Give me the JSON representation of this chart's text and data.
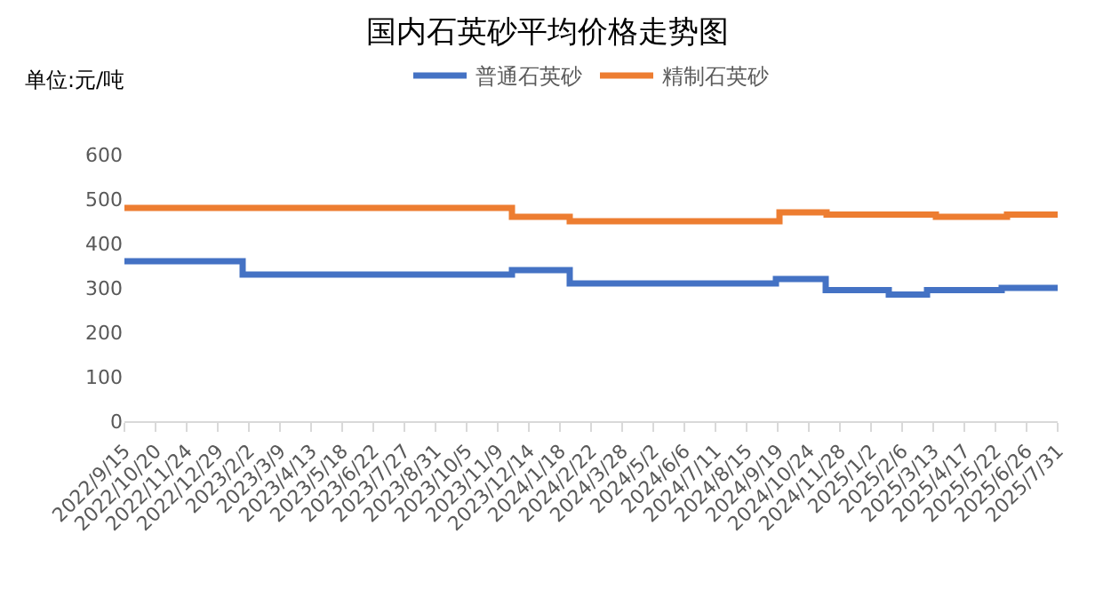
{
  "chart_data": {
    "type": "step",
    "title": "国内石英砂平均价格走势图",
    "annotations": [
      "单位:元/吨"
    ],
    "series": [
      {
        "name": "普通石英砂",
        "color": "#4472c4",
        "x": [
          "2022-09-15",
          "2023-01-26",
          "2023-11-25",
          "2024-01-29",
          "2024-09-17",
          "2024-11-12",
          "2025-01-22",
          "2025-03-06",
          "2025-05-29",
          "2025-07-31"
        ],
        "values": [
          360,
          330,
          340,
          310,
          320,
          295,
          285,
          295,
          300,
          300
        ]
      },
      {
        "name": "精制石英砂",
        "color": "#ed7d31",
        "x": [
          "2022-09-15",
          "2023-11-25",
          "2024-01-29",
          "2024-09-21",
          "2024-11-13",
          "2025-03-16",
          "2025-06-04",
          "2025-07-31"
        ],
        "values": [
          480,
          460,
          450,
          470,
          465,
          460,
          465,
          465
        ]
      }
    ],
    "xlim": [
      "2022-09-15",
      "2025-07-31"
    ],
    "xticks": [
      {
        "value": "2022-09-15",
        "label": "2022/9/15"
      },
      {
        "value": "2022-10-20",
        "label": "2022/10/20"
      },
      {
        "value": "2022-11-24",
        "label": "2022/11/24"
      },
      {
        "value": "2022-12-29",
        "label": "2022/12/29"
      },
      {
        "value": "2023-02-02",
        "label": "2023/2/2"
      },
      {
        "value": "2023-03-09",
        "label": "2023/3/9"
      },
      {
        "value": "2023-04-13",
        "label": "2023/4/13"
      },
      {
        "value": "2023-05-18",
        "label": "2023/5/18"
      },
      {
        "value": "2023-06-22",
        "label": "2023/6/22"
      },
      {
        "value": "2023-07-27",
        "label": "2023/7/27"
      },
      {
        "value": "2023-08-31",
        "label": "2023/8/31"
      },
      {
        "value": "2023-10-05",
        "label": "2023/10/5"
      },
      {
        "value": "2023-11-09",
        "label": "2023/11/9"
      },
      {
        "value": "2023-12-14",
        "label": "2023/12/14"
      },
      {
        "value": "2024-01-18",
        "label": "2024/1/18"
      },
      {
        "value": "2024-02-22",
        "label": "2024/2/22"
      },
      {
        "value": "2024-03-28",
        "label": "2024/3/28"
      },
      {
        "value": "2024-05-02",
        "label": "2024/5/2"
      },
      {
        "value": "2024-06-06",
        "label": "2024/6/6"
      },
      {
        "value": "2024-07-11",
        "label": "2024/7/11"
      },
      {
        "value": "2024-08-15",
        "label": "2024/8/15"
      },
      {
        "value": "2024-09-19",
        "label": "2024/9/19"
      },
      {
        "value": "2024-10-24",
        "label": "2024/10/24"
      },
      {
        "value": "2024-11-28",
        "label": "2024/11/28"
      },
      {
        "value": "2025-01-02",
        "label": "2025/1/2"
      },
      {
        "value": "2025-02-06",
        "label": "2025/2/6"
      },
      {
        "value": "2025-03-13",
        "label": "2025/3/13"
      },
      {
        "value": "2025-04-17",
        "label": "2025/4/17"
      },
      {
        "value": "2025-05-22",
        "label": "2025/5/22"
      },
      {
        "value": "2025-06-26",
        "label": "2025/6/26"
      },
      {
        "value": "2025-07-31",
        "label": "2025/7/31"
      }
    ],
    "ylim": [
      0,
      600
    ],
    "yticks": [
      0,
      100,
      200,
      300,
      400,
      500,
      600
    ],
    "grid": false,
    "legend": "top"
  }
}
